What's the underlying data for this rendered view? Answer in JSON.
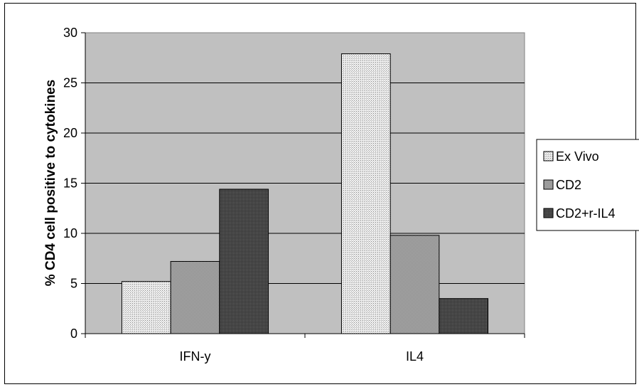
{
  "chart_data": {
    "type": "bar",
    "title": "",
    "xlabel": "",
    "ylabel": "% CD4 cell positive to cytokines",
    "categories": [
      "IFN-y",
      "IL4"
    ],
    "series": [
      {
        "name": "Ex Vivo",
        "values": [
          5.2,
          27.9
        ],
        "color": "#d8d8d8"
      },
      {
        "name": "CD2",
        "values": [
          7.2,
          9.8
        ],
        "color": "#a6a6a6"
      },
      {
        "name": "CD2+r-IL4",
        "values": [
          14.4,
          3.5
        ],
        "color": "#4d4d4d"
      }
    ],
    "ylim": [
      0,
      30
    ],
    "yticks": [
      0,
      5,
      10,
      15,
      20,
      25,
      30
    ],
    "grid": true,
    "plot_background": "#c0c0c0",
    "legend_position": "right"
  }
}
